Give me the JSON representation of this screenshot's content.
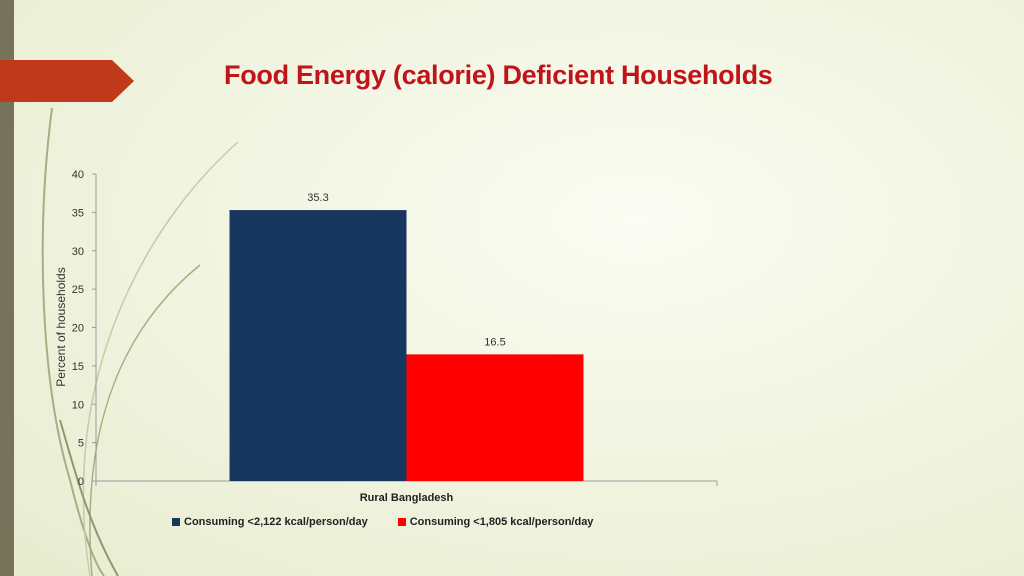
{
  "slide": {
    "title": "Food Energy (calorie) Deficient Households",
    "accent_color": "#c0391b",
    "title_color": "#c0141b"
  },
  "chart_data": {
    "type": "bar",
    "categories": [
      "Rural Bangladesh"
    ],
    "series": [
      {
        "name": "Consuming <2,122 kcal/person/day",
        "values": [
          35.3
        ],
        "color": "#17375e"
      },
      {
        "name": "Consuming <1,805 kcal/person/day",
        "values": [
          16.5
        ],
        "color": "#ff0000"
      }
    ],
    "ylabel": "Percent of households",
    "xlabel": "",
    "ylim": [
      0,
      40
    ],
    "yticks": [
      0,
      5,
      10,
      15,
      20,
      25,
      30,
      35,
      40
    ],
    "data_labels": [
      "35.3",
      "16.5"
    ],
    "grid": false,
    "legend_position": "bottom"
  }
}
